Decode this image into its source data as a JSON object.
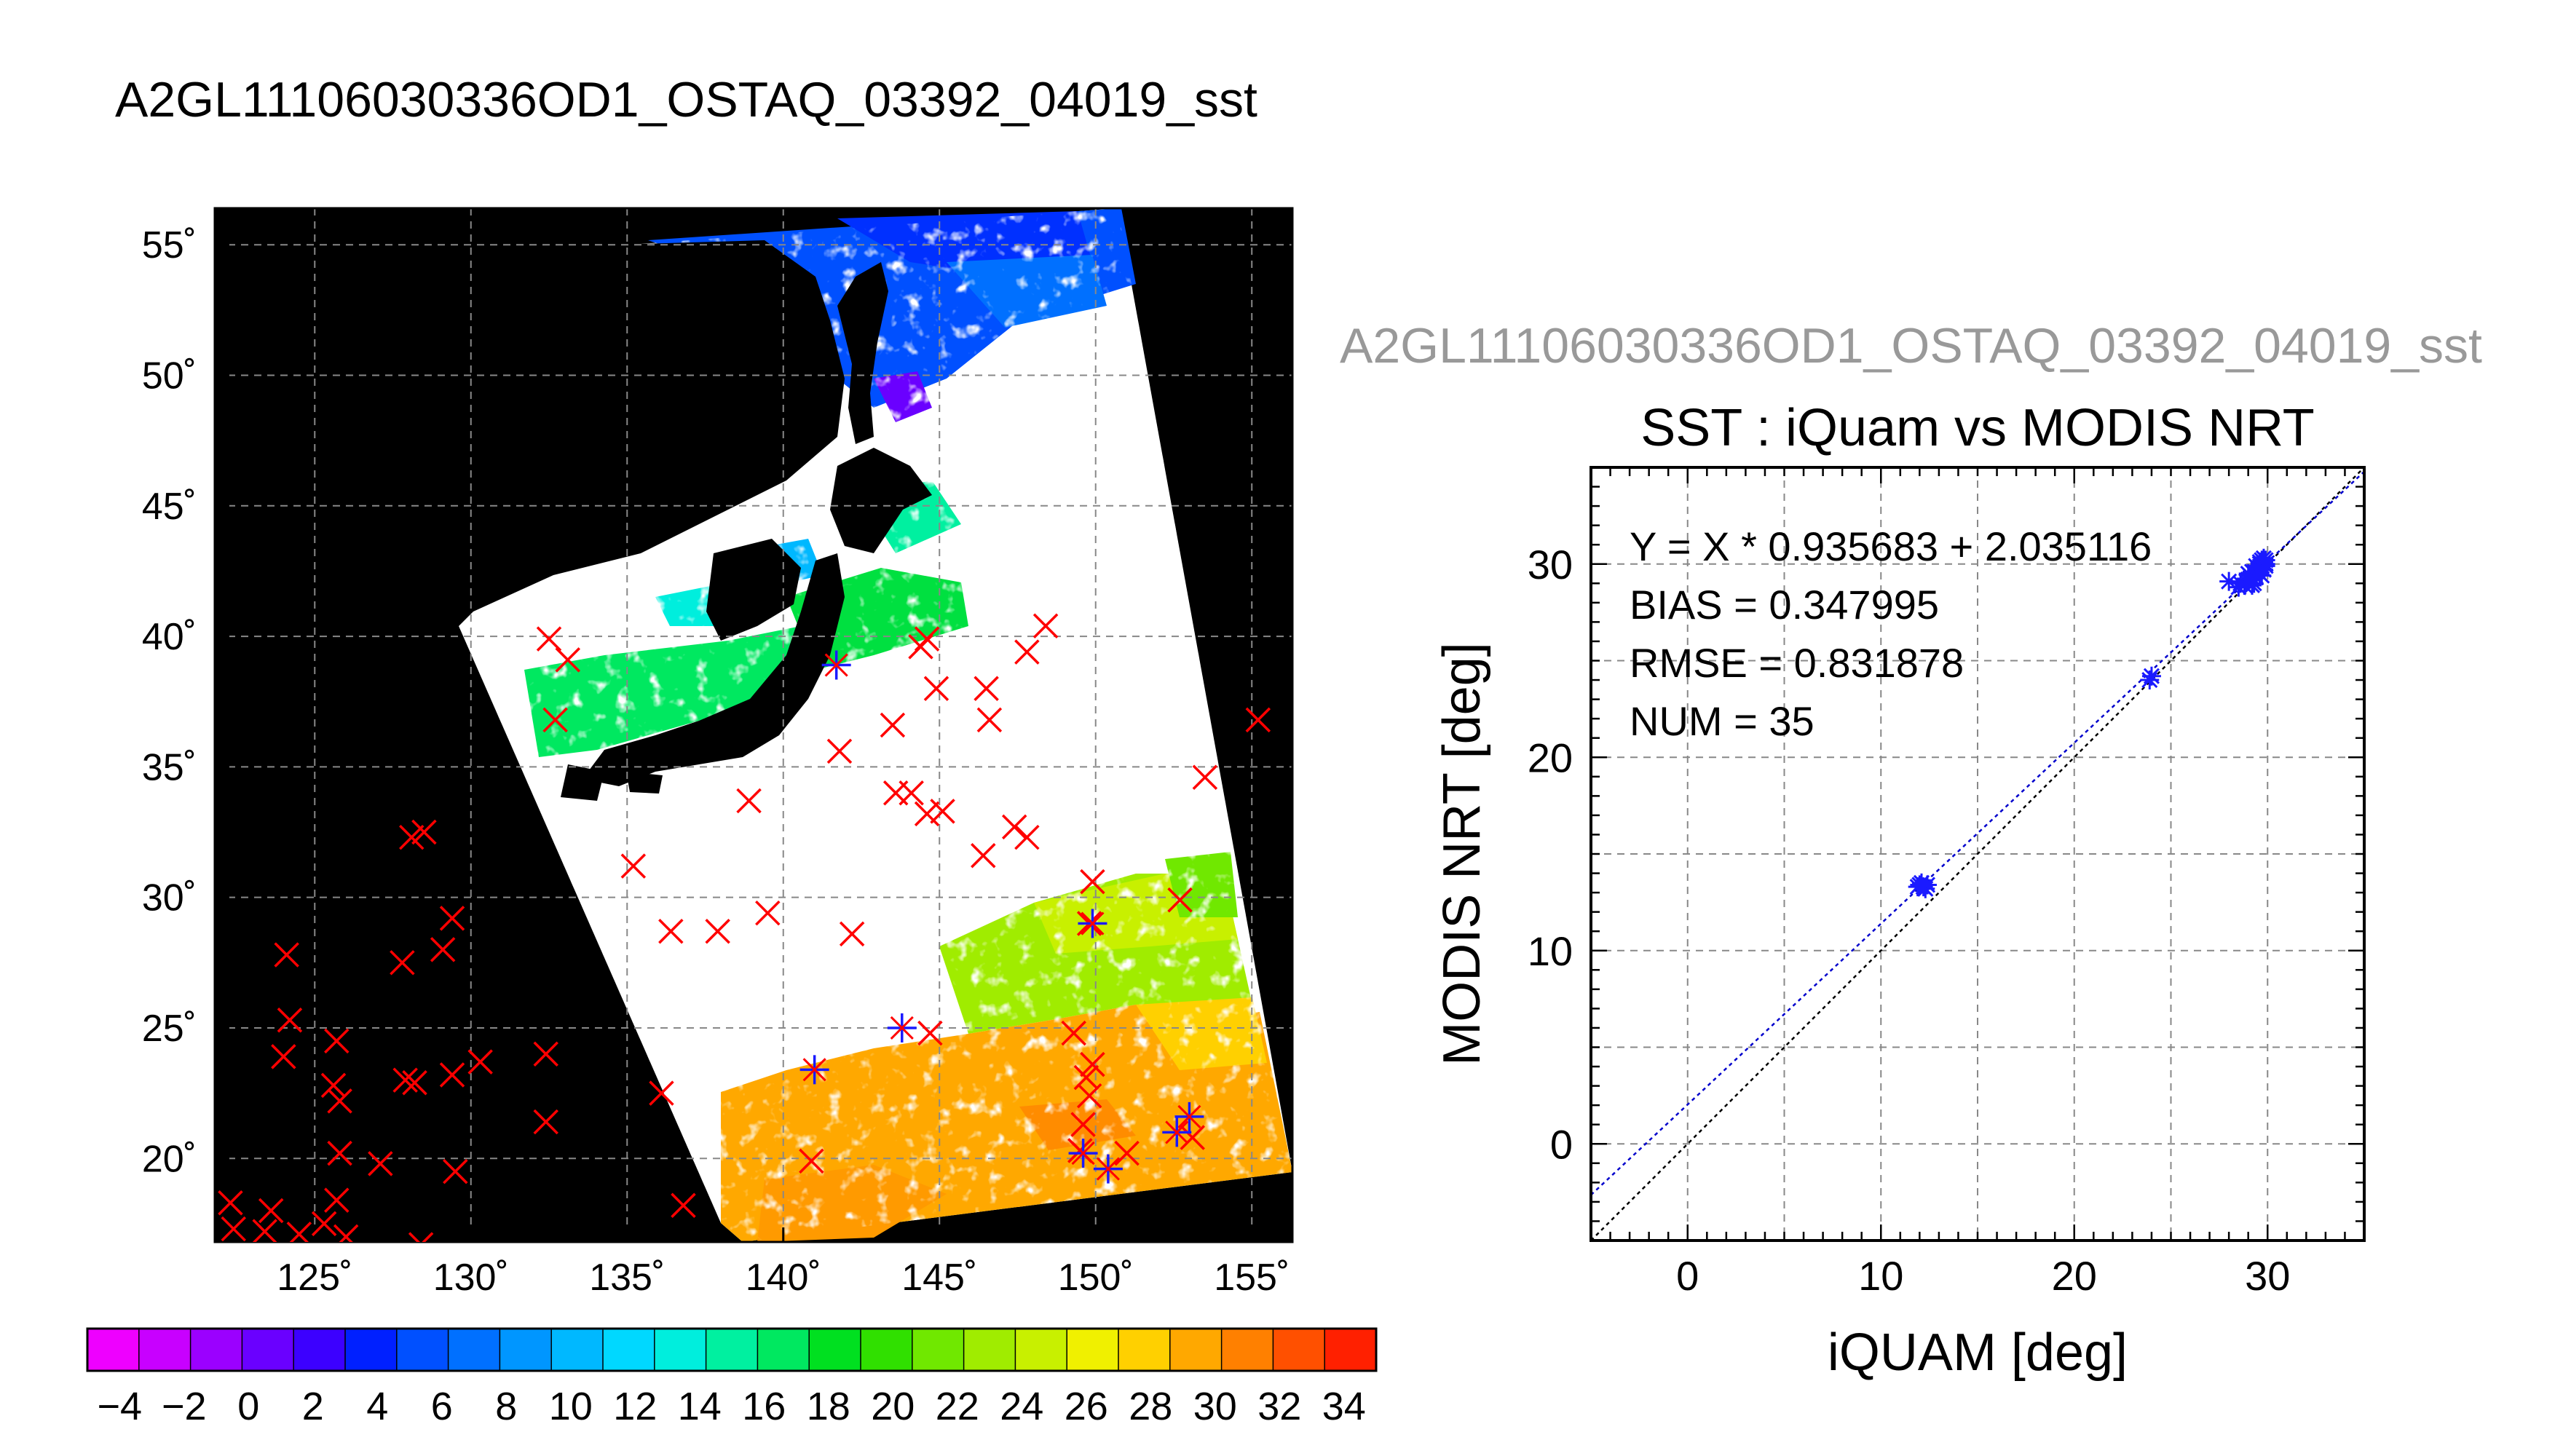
{
  "page": {
    "main_title": "A2GL11106030336OD1_OSTAQ_03392_04019_sst"
  },
  "colors": {
    "map_background": "#000000",
    "swath_no_data": "#ffffff",
    "marker_red": "#ff0000",
    "marker_blue": "#1a1aff",
    "fit_line": "#0000cc",
    "identity_line": "#000000",
    "grid": "#888888",
    "secondary_title": "#999999"
  },
  "chart_data": [
    {
      "type": "heatmap",
      "name": "sst-map",
      "lon_ticks": [
        "125˚",
        "130˚",
        "135˚",
        "140˚",
        "145˚",
        "150˚",
        "155˚"
      ],
      "lat_ticks": [
        "55˚",
        "50˚",
        "45˚",
        "40˚",
        "35˚",
        "30˚",
        "25˚",
        "20˚"
      ],
      "lon_range": [
        121.8,
        156.3
      ],
      "lat_range": [
        16.8,
        56.4
      ],
      "grid": true,
      "colorbar": {
        "ticks": [
          "−4",
          "−2",
          "0",
          "2",
          "4",
          "6",
          "8",
          "10",
          "12",
          "14",
          "16",
          "18",
          "20",
          "22",
          "24",
          "26",
          "28",
          "30",
          "32",
          "34"
        ],
        "min": -5,
        "max": 35,
        "colors": [
          "#ee00ff",
          "#c800ff",
          "#9b00ff",
          "#6a00ff",
          "#3c00ff",
          "#0020ff",
          "#0050ff",
          "#0070ff",
          "#0096ff",
          "#00b8ff",
          "#00d8ff",
          "#00eedd",
          "#00f0a0",
          "#00e860",
          "#00e020",
          "#30e000",
          "#70e800",
          "#a0ec00",
          "#c8f000",
          "#f0f000",
          "#ffd000",
          "#ffa800",
          "#ff8000",
          "#ff5000",
          "#ff2000"
        ]
      },
      "red_marks": [
        [
          122.3,
          18.3
        ],
        [
          123.6,
          18.0
        ],
        [
          122.4,
          17.3
        ],
        [
          123.4,
          17.2
        ],
        [
          124.5,
          17.1
        ],
        [
          125.3,
          17.5
        ],
        [
          126.0,
          17.0
        ],
        [
          128.4,
          16.7
        ],
        [
          125.7,
          18.4
        ],
        [
          125.8,
          20.2
        ],
        [
          127.1,
          19.8
        ],
        [
          129.5,
          19.5
        ],
        [
          124.0,
          23.9
        ],
        [
          125.6,
          22.8
        ],
        [
          125.8,
          22.2
        ],
        [
          125.7,
          24.5
        ],
        [
          124.2,
          25.3
        ],
        [
          124.1,
          27.8
        ],
        [
          127.9,
          23.0
        ],
        [
          128.2,
          22.9
        ],
        [
          129.4,
          23.2
        ],
        [
          130.3,
          23.7
        ],
        [
          132.4,
          24.0
        ],
        [
          132.4,
          21.4
        ],
        [
          127.8,
          27.5
        ],
        [
          129.1,
          28.0
        ],
        [
          129.4,
          29.2
        ],
        [
          128.1,
          32.3
        ],
        [
          128.5,
          32.5
        ],
        [
          132.5,
          39.9
        ],
        [
          133.1,
          39.1
        ],
        [
          132.7,
          36.8
        ],
        [
          135.2,
          31.2
        ],
        [
          136.4,
          28.7
        ],
        [
          137.9,
          28.7
        ],
        [
          139.5,
          29.4
        ],
        [
          138.9,
          33.7
        ],
        [
          136.1,
          22.5
        ],
        [
          136.8,
          18.2
        ],
        [
          141.8,
          35.6
        ],
        [
          142.2,
          28.6
        ],
        [
          143.5,
          36.6
        ],
        [
          143.6,
          34.0
        ],
        [
          144.1,
          34.0
        ],
        [
          144.6,
          33.2
        ],
        [
          145.1,
          33.3
        ],
        [
          144.4,
          39.6
        ],
        [
          144.9,
          38.0
        ],
        [
          144.6,
          39.9
        ],
        [
          146.5,
          38.0
        ],
        [
          146.6,
          36.8
        ],
        [
          146.4,
          31.6
        ],
        [
          147.4,
          32.7
        ],
        [
          147.8,
          32.3
        ],
        [
          147.8,
          39.4
        ],
        [
          148.4,
          40.4
        ],
        [
          149.3,
          24.8
        ],
        [
          149.9,
          30.6
        ],
        [
          149.8,
          29.0
        ],
        [
          149.8,
          22.4
        ],
        [
          149.7,
          23.1
        ],
        [
          149.9,
          23.6
        ],
        [
          149.6,
          21.3
        ],
        [
          149.5,
          20.3
        ],
        [
          151.0,
          20.2
        ],
        [
          152.7,
          29.9
        ],
        [
          153.5,
          34.6
        ],
        [
          153.1,
          20.8
        ],
        [
          155.2,
          36.8
        ],
        [
          144.7,
          24.8
        ],
        [
          140.9,
          19.9
        ]
      ],
      "blue_marks": [
        [
          141.7,
          38.9
        ],
        [
          149.9,
          29.0
        ],
        [
          143.8,
          25.0
        ],
        [
          141.0,
          23.4
        ],
        [
          149.6,
          20.2
        ],
        [
          150.4,
          19.6
        ],
        [
          153.0,
          21.6
        ],
        [
          152.6,
          21.0
        ]
      ]
    },
    {
      "type": "scatter",
      "name": "iquam-vs-modis",
      "secondary_title": "A2GL11106030336OD1_OSTAQ_03392_04019_sst",
      "title": "SST : iQuam vs MODIS NRT",
      "xlabel": "iQUAM [deg]",
      "ylabel": "MODIS NRT [deg]",
      "xlim": [
        -5,
        35
      ],
      "ylim": [
        -5,
        35
      ],
      "x_ticks": [
        "0",
        "10",
        "20",
        "30"
      ],
      "y_ticks": [
        "0",
        "10",
        "20",
        "30"
      ],
      "grid": true,
      "stats": [
        "Y = X * 0.935683 + 2.035116",
        "BIAS = 0.347995",
        "RMSE = 0.831878",
        "NUM = 35"
      ],
      "fit": {
        "slope": 0.935683,
        "intercept": 2.035116
      },
      "points": [
        [
          12.0,
          13.4
        ],
        [
          12.2,
          13.3
        ],
        [
          12.1,
          13.5
        ],
        [
          12.3,
          13.2
        ],
        [
          11.9,
          13.3
        ],
        [
          12.4,
          13.4
        ],
        [
          23.9,
          24.0
        ],
        [
          24.0,
          24.2
        ],
        [
          28.0,
          29.1
        ],
        [
          28.6,
          29.0
        ],
        [
          28.8,
          28.9
        ],
        [
          29.0,
          29.2
        ],
        [
          29.2,
          28.9
        ],
        [
          29.5,
          29.6
        ],
        [
          29.7,
          29.9
        ],
        [
          29.8,
          30.1
        ],
        [
          29.4,
          29.3
        ],
        [
          29.6,
          29.5
        ],
        [
          29.9,
          30.0
        ],
        [
          29.8,
          29.7
        ],
        [
          28.9,
          29.1
        ],
        [
          29.1,
          29.4
        ],
        [
          29.7,
          30.2
        ],
        [
          29.5,
          29.8
        ],
        [
          29.3,
          29.0
        ],
        [
          29.6,
          30.0
        ],
        [
          29.9,
          30.2
        ],
        [
          28.5,
          28.8
        ],
        [
          29.0,
          29.5
        ],
        [
          29.4,
          29.9
        ],
        [
          29.8,
          30.3
        ],
        [
          29.2,
          29.6
        ],
        [
          29.7,
          29.4
        ],
        [
          29.6,
          30.1
        ],
        [
          29.9,
          29.9
        ]
      ]
    }
  ]
}
